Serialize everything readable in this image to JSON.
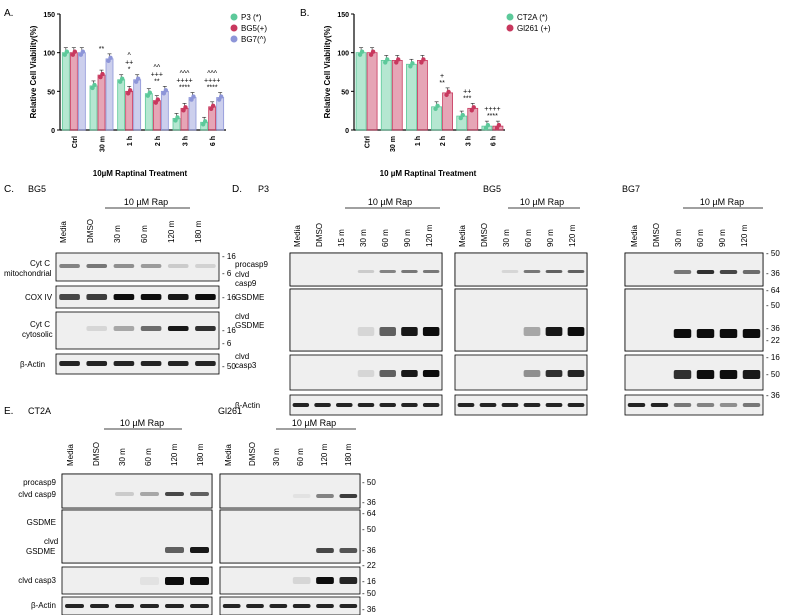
{
  "chart_data": [
    {
      "panel": "A.",
      "type": "bar",
      "categories": [
        "Ctrl",
        "30 m",
        "1 h",
        "2 h",
        "3 h",
        "6 h"
      ],
      "series": [
        {
          "name": "P3 (*)",
          "values": [
            100,
            57,
            65,
            47,
            15,
            10
          ],
          "color": "#5cc99a"
        },
        {
          "name": "BG5(+)",
          "values": [
            100,
            71,
            50,
            38,
            28,
            30
          ],
          "color": "#c8385e"
        },
        {
          "name": "BG7(^)",
          "values": [
            100,
            92,
            65,
            50,
            42,
            42
          ],
          "color": "#8d95d8"
        }
      ],
      "ylabel": "Relative Cell Viability(%)",
      "xlabel": "10µM Raptinal Treatment",
      "ylim": [
        0,
        150
      ],
      "yticks": [
        0,
        50,
        100,
        150
      ],
      "annotations": [
        {
          "category": "30 m",
          "lines": [
            "**"
          ]
        },
        {
          "category": "1 h",
          "lines": [
            "^",
            "++",
            "*"
          ]
        },
        {
          "category": "2 h",
          "lines": [
            "^^",
            "+++",
            "**"
          ]
        },
        {
          "category": "3 h",
          "lines": [
            "^^^",
            "++++",
            "****"
          ]
        },
        {
          "category": "6 h",
          "lines": [
            "^^^",
            "++++",
            "****"
          ]
        }
      ],
      "legend": "top-right"
    },
    {
      "panel": "B.",
      "type": "bar",
      "categories": [
        "Ctrl",
        "30 m",
        "1 h",
        "2 h",
        "3 h",
        "6 h"
      ],
      "series": [
        {
          "name": "CT2A (*)",
          "values": [
            100,
            90,
            85,
            30,
            18,
            5
          ],
          "color": "#5cc99a"
        },
        {
          "name": "Gl261 (+)",
          "values": [
            100,
            90,
            90,
            48,
            28,
            5
          ],
          "color": "#c8385e"
        }
      ],
      "ylabel": "Relative Cell Viability(%)",
      "xlabel": "10 µM Raptinal Treatment",
      "ylim": [
        0,
        150
      ],
      "yticks": [
        0,
        50,
        100,
        150
      ],
      "annotations": [
        {
          "category": "2 h",
          "lines": [
            "+",
            "**"
          ]
        },
        {
          "category": "3 h",
          "lines": [
            "++",
            "***"
          ]
        },
        {
          "category": "6 h",
          "lines": [
            "++++",
            "****"
          ]
        }
      ],
      "legend": "top-right"
    }
  ],
  "blots": {
    "C": {
      "letter": "C.",
      "cell": "BG5",
      "treatment": "10 µM Rap",
      "lanes": [
        "Media",
        "DMSO",
        "30 m",
        "60 m",
        "120 m",
        "180 m"
      ],
      "rows": [
        "Cyt C mitochondrial",
        "COX IV",
        "Cyt C cytosolic",
        "β-Actin"
      ],
      "mw": [
        "16",
        "6",
        "16",
        "16",
        "6",
        "50"
      ]
    },
    "D": {
      "letter": "D.",
      "p3_cell": "P3",
      "bg5_cell": "BG5",
      "bg7_cell": "BG7",
      "treatment": "10 µM Rap",
      "p3_lanes": [
        "Media",
        "DMSO",
        "15 m",
        "30 m",
        "60 m",
        "90 m",
        "120 m"
      ],
      "bg5_lanes": [
        "Media",
        "DMSO",
        "30 m",
        "60 m",
        "90 m",
        "120 m"
      ],
      "bg7_lanes": [
        "Media",
        "DMSO",
        "30 m",
        "60 m",
        "90 m",
        "120 m"
      ],
      "rows": [
        "procasp9",
        "clvd casp9",
        "GSDME",
        "clvd GSDME",
        "clvd casp3",
        "β-Actin"
      ],
      "mw": [
        "50",
        "36",
        "64",
        "50",
        "36",
        "22",
        "16",
        "50",
        "36"
      ]
    },
    "E": {
      "letter": "E.",
      "ct2a_cell": "CT2A",
      "gl261_cell": "Gl261",
      "treatment": "10 µM Rap",
      "ct2a_lanes": [
        "Media",
        "DMSO",
        "30 m",
        "60 m",
        "120 m",
        "180 m"
      ],
      "gl261_lanes": [
        "Media",
        "DMSO",
        "30 m",
        "60 m",
        "120 m",
        "180 m"
      ],
      "rows": [
        "procasp9",
        "clvd casp9",
        "GSDME",
        "clvd GSDME",
        "clvd casp3",
        "β-Actin"
      ],
      "mw": [
        "50",
        "36",
        "64",
        "50",
        "36",
        "22",
        "16",
        "50",
        "36"
      ]
    }
  }
}
